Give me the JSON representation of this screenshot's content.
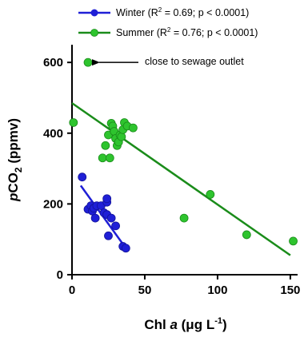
{
  "chart_data": {
    "type": "scatter",
    "xlabel_main": "Chl ",
    "xlabel_italic": "a",
    "xlabel_units": " (μg L",
    "xlabel_exp": "-1",
    "xlabel_close": ")",
    "ylabel_italic": "p",
    "ylabel_main": "CO",
    "ylabel_sub": "2",
    "ylabel_units": " (ppmv)",
    "xlim": [
      0,
      155
    ],
    "ylim": [
      0,
      650
    ],
    "xticks": [
      "0",
      "50",
      "100",
      "150"
    ],
    "yticks": [
      "0",
      "200",
      "400",
      "600"
    ],
    "xtick_values": [
      0,
      50,
      100,
      150
    ],
    "ytick_values": [
      0,
      200,
      400,
      600
    ],
    "legend_placement": "top",
    "series": [
      {
        "name": "Winter",
        "legend_prefix": "Winter (R",
        "legend_sup": "2",
        "legend_suffix": " = 0.69; p < 0.0001)",
        "color": "#1f1fd6",
        "points": [
          {
            "x": 7,
            "y": 276
          },
          {
            "x": 11,
            "y": 185
          },
          {
            "x": 13,
            "y": 195
          },
          {
            "x": 14,
            "y": 180
          },
          {
            "x": 15,
            "y": 188
          },
          {
            "x": 16,
            "y": 160
          },
          {
            "x": 17,
            "y": 195
          },
          {
            "x": 20,
            "y": 195
          },
          {
            "x": 22,
            "y": 175
          },
          {
            "x": 24,
            "y": 205
          },
          {
            "x": 24,
            "y": 215
          },
          {
            "x": 24,
            "y": 170
          },
          {
            "x": 25,
            "y": 110
          },
          {
            "x": 27,
            "y": 160
          },
          {
            "x": 30,
            "y": 138
          },
          {
            "x": 35,
            "y": 80
          },
          {
            "x": 37,
            "y": 75
          }
        ],
        "fit": {
          "x0": 6,
          "y0": 252,
          "x1": 37,
          "y1": 75
        }
      },
      {
        "name": "Summer",
        "legend_prefix": "Summer (R",
        "legend_sup": "2",
        "legend_suffix": " = 0.76; p < 0.0001)",
        "color": "#1a8c1a",
        "points": [
          {
            "x": 1,
            "y": 430
          },
          {
            "x": 11,
            "y": 600
          },
          {
            "x": 21,
            "y": 330
          },
          {
            "x": 23,
            "y": 365
          },
          {
            "x": 25,
            "y": 395
          },
          {
            "x": 26,
            "y": 330
          },
          {
            "x": 27,
            "y": 428
          },
          {
            "x": 28,
            "y": 420
          },
          {
            "x": 29,
            "y": 405
          },
          {
            "x": 30,
            "y": 385
          },
          {
            "x": 31,
            "y": 365
          },
          {
            "x": 32,
            "y": 375
          },
          {
            "x": 33,
            "y": 395
          },
          {
            "x": 34,
            "y": 390
          },
          {
            "x": 35,
            "y": 410
          },
          {
            "x": 36,
            "y": 430
          },
          {
            "x": 38,
            "y": 420
          },
          {
            "x": 42,
            "y": 415
          },
          {
            "x": 77,
            "y": 160
          },
          {
            "x": 95,
            "y": 227
          },
          {
            "x": 120,
            "y": 113
          },
          {
            "x": 152,
            "y": 95
          }
        ],
        "fit": {
          "x0": 0,
          "y0": 485,
          "x1": 150,
          "y1": 55
        }
      }
    ],
    "annotations": [
      {
        "text": "close to sewage outlet",
        "x": 11,
        "y": 600
      }
    ]
  }
}
